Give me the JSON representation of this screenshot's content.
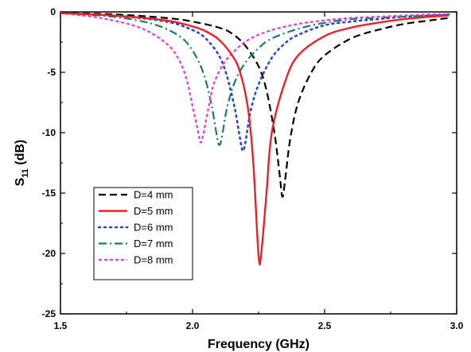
{
  "chart_data": {
    "type": "line",
    "title": "",
    "xlabel": "Frequency (GHz)",
    "ylabel_main": "S",
    "ylabel_sub": "11",
    "ylabel_unit": " (dB)",
    "xlim": [
      1.5,
      3.0
    ],
    "ylim": [
      -25,
      0
    ],
    "xticks": [
      1.5,
      2.0,
      2.5,
      3.0
    ],
    "xtick_labels": [
      "1.5",
      "2.0",
      "2.5",
      "3.0"
    ],
    "yticks": [
      0,
      -5,
      -10,
      -15,
      -20,
      -25
    ],
    "ytick_labels": [
      "0",
      "-5",
      "-10",
      "-15",
      "-20",
      "-25"
    ],
    "grid": false,
    "legend_position": "bottom-left",
    "series": [
      {
        "name": "D=4 mm",
        "color": "#000000",
        "dash": "dash",
        "x": [
          1.5,
          1.7,
          1.9,
          2.0,
          2.1,
          2.15,
          2.2,
          2.25,
          2.28,
          2.31,
          2.33,
          2.34,
          2.35,
          2.37,
          2.4,
          2.45,
          2.5,
          2.6,
          2.7,
          2.8,
          2.9,
          2.97
        ],
        "y": [
          -0.1,
          -0.2,
          -0.5,
          -0.8,
          -1.3,
          -1.8,
          -2.8,
          -4.5,
          -6.5,
          -10.0,
          -13.5,
          -15.3,
          -14.0,
          -10.5,
          -7.5,
          -5.0,
          -3.6,
          -2.2,
          -1.5,
          -1.0,
          -0.7,
          -0.5
        ]
      },
      {
        "name": "D=5 mm",
        "color": "#e8232a",
        "dash": "solid",
        "x": [
          1.5,
          1.7,
          1.9,
          2.0,
          2.05,
          2.1,
          2.15,
          2.18,
          2.21,
          2.23,
          2.25,
          2.26,
          2.28,
          2.3,
          2.35,
          2.4,
          2.5,
          2.6,
          2.7,
          2.8,
          2.9,
          2.97
        ],
        "y": [
          -0.1,
          -0.3,
          -0.7,
          -1.2,
          -1.6,
          -2.3,
          -3.6,
          -5.0,
          -8.0,
          -12.5,
          -20.2,
          -20.0,
          -15.0,
          -10.0,
          -5.8,
          -3.6,
          -2.0,
          -1.3,
          -0.9,
          -0.6,
          -0.4,
          -0.3
        ]
      },
      {
        "name": "D=6 mm",
        "color": "#2a48c8",
        "dash": "dot",
        "x": [
          1.5,
          1.7,
          1.9,
          2.0,
          2.05,
          2.1,
          2.13,
          2.16,
          2.18,
          2.19,
          2.2,
          2.22,
          2.25,
          2.3,
          2.35,
          2.4,
          2.5,
          2.6,
          2.7,
          2.8,
          2.9,
          2.97
        ],
        "y": [
          -0.1,
          -0.3,
          -0.8,
          -1.5,
          -2.2,
          -3.6,
          -5.3,
          -8.0,
          -10.5,
          -11.5,
          -10.8,
          -8.2,
          -6.0,
          -3.8,
          -2.6,
          -1.9,
          -1.1,
          -0.8,
          -0.6,
          -0.4,
          -0.3,
          -0.2
        ]
      },
      {
        "name": "D=7 mm",
        "color": "#1a7a6e",
        "dash": "dashdot",
        "x": [
          1.5,
          1.7,
          1.85,
          1.95,
          2.0,
          2.04,
          2.07,
          2.09,
          2.1,
          2.11,
          2.13,
          2.16,
          2.2,
          2.25,
          2.3,
          2.4,
          2.5,
          2.6,
          2.7,
          2.8,
          2.9,
          2.97
        ],
        "y": [
          -0.1,
          -0.4,
          -1.0,
          -2.0,
          -3.2,
          -5.0,
          -7.5,
          -10.0,
          -11.0,
          -10.5,
          -8.0,
          -5.8,
          -4.2,
          -3.0,
          -2.2,
          -1.4,
          -0.9,
          -0.6,
          -0.5,
          -0.4,
          -0.3,
          -0.2
        ]
      },
      {
        "name": "D=8 mm",
        "color": "#e23bd6",
        "dash": "dash-short",
        "x": [
          1.5,
          1.65,
          1.8,
          1.9,
          1.95,
          1.98,
          2.0,
          2.02,
          2.03,
          2.04,
          2.06,
          2.08,
          2.12,
          2.17,
          2.22,
          2.3,
          2.4,
          2.5,
          2.6,
          2.7,
          2.8,
          2.9,
          2.97
        ],
        "y": [
          -0.1,
          -0.5,
          -1.3,
          -2.6,
          -4.0,
          -5.8,
          -7.8,
          -9.8,
          -10.8,
          -10.2,
          -8.0,
          -6.0,
          -4.2,
          -3.0,
          -2.2,
          -1.5,
          -1.0,
          -0.7,
          -0.5,
          -0.4,
          -0.3,
          -0.2,
          -0.2
        ]
      }
    ]
  }
}
